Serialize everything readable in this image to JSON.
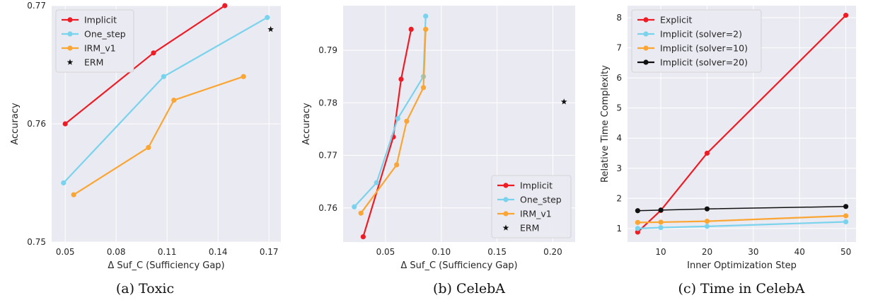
{
  "chart_data": [
    {
      "type": "line",
      "caption": "(a)  Toxic",
      "xlabel": "Δ Suf_C (Sufficiency Gap)",
      "ylabel": "Accuracy",
      "xlim": [
        0.042,
        0.177
      ],
      "ylim": [
        0.75,
        0.77
      ],
      "xticks": [
        0.05,
        0.08,
        0.11,
        0.14,
        0.17
      ],
      "xtick_labels": [
        "0.05",
        "0.08",
        "0.11",
        "0.14",
        "0.17"
      ],
      "yticks": [
        0.75,
        0.76,
        0.77
      ],
      "ytick_labels": [
        "0.75",
        "0.76",
        "0.77"
      ],
      "grid": true,
      "legend": "top-left",
      "series": [
        {
          "name": "Implicit",
          "color": "#ee1c25",
          "marker": "circle",
          "x": [
            0.05,
            0.102,
            0.144
          ],
          "y": [
            0.76,
            0.766,
            0.77
          ]
        },
        {
          "name": "One_step",
          "color": "#7ad3ed",
          "marker": "circle",
          "x": [
            0.049,
            0.108,
            0.169
          ],
          "y": [
            0.755,
            0.764,
            0.769
          ]
        },
        {
          "name": "IRM_v1",
          "color": "#fba533",
          "marker": "circle",
          "x": [
            0.055,
            0.099,
            0.114,
            0.155
          ],
          "y": [
            0.754,
            0.758,
            0.762,
            0.764
          ]
        },
        {
          "name": "ERM",
          "color": "#111111",
          "marker": "star",
          "x": [
            0.171
          ],
          "y": [
            0.768
          ]
        }
      ]
    },
    {
      "type": "line",
      "caption": "(b)  CelebA",
      "xlabel": "Δ Suf_C (Sufficiency Gap)",
      "ylabel": "Accuracy",
      "xlim": [
        0.012,
        0.22
      ],
      "ylim": [
        0.7535,
        0.7985
      ],
      "xticks": [
        0.05,
        0.1,
        0.15,
        0.2
      ],
      "xtick_labels": [
        "0.05",
        "0.10",
        "0.15",
        "0.20"
      ],
      "yticks": [
        0.76,
        0.77,
        0.78,
        0.79
      ],
      "ytick_labels": [
        "0.76",
        "0.77",
        "0.78",
        "0.79"
      ],
      "grid": true,
      "legend": "bottom-right",
      "series": [
        {
          "name": "Implicit",
          "color": "#ee1c25",
          "marker": "circle",
          "x": [
            0.03,
            0.057,
            0.064,
            0.073
          ],
          "y": [
            0.7545,
            0.7735,
            0.7845,
            0.794
          ]
        },
        {
          "name": "One_step",
          "color": "#7ad3ed",
          "marker": "circle",
          "x": [
            0.022,
            0.042,
            0.061,
            0.084,
            0.086
          ],
          "y": [
            0.7602,
            0.7648,
            0.777,
            0.785,
            0.7965
          ]
        },
        {
          "name": "IRM_v1",
          "color": "#fba533",
          "marker": "circle",
          "x": [
            0.028,
            0.06,
            0.069,
            0.084,
            0.086
          ],
          "y": [
            0.759,
            0.7682,
            0.7765,
            0.7829,
            0.794
          ]
        },
        {
          "name": "ERM",
          "color": "#111111",
          "marker": "star",
          "x": [
            0.21
          ],
          "y": [
            0.7802
          ]
        }
      ]
    },
    {
      "type": "line",
      "caption": "(c)  Time in CelebA",
      "xlabel": "Inner Optimization Step",
      "ylabel": "Relative Time Complexity",
      "xlim": [
        2.8,
        52.2
      ],
      "ylim": [
        0.55,
        8.4
      ],
      "xticks": [
        10,
        20,
        30,
        40,
        50
      ],
      "xtick_labels": [
        "10",
        "20",
        "30",
        "40",
        "50"
      ],
      "yticks": [
        1,
        2,
        3,
        4,
        5,
        6,
        7,
        8
      ],
      "ytick_labels": [
        "1",
        "2",
        "3",
        "4",
        "5",
        "6",
        "7",
        "8"
      ],
      "grid": true,
      "legend": "top-left",
      "series": [
        {
          "name": "Explicit",
          "color": "#ee1c25",
          "marker": "circle",
          "x": [
            5,
            10,
            20,
            50
          ],
          "y": [
            0.88,
            1.6,
            3.5,
            8.08
          ]
        },
        {
          "name": "Implicit (solver=2)",
          "color": "#7ad3ed",
          "marker": "circle",
          "x": [
            5,
            10,
            20,
            50
          ],
          "y": [
            1.0,
            1.03,
            1.07,
            1.22
          ]
        },
        {
          "name": "Implicit (solver=10)",
          "color": "#fba533",
          "marker": "circle",
          "x": [
            5,
            10,
            20,
            50
          ],
          "y": [
            1.2,
            1.21,
            1.24,
            1.42
          ]
        },
        {
          "name": "Implicit (solver=20)",
          "color": "#111111",
          "marker": "circle",
          "x": [
            5,
            10,
            20,
            50
          ],
          "y": [
            1.59,
            1.61,
            1.65,
            1.73
          ]
        }
      ]
    }
  ]
}
